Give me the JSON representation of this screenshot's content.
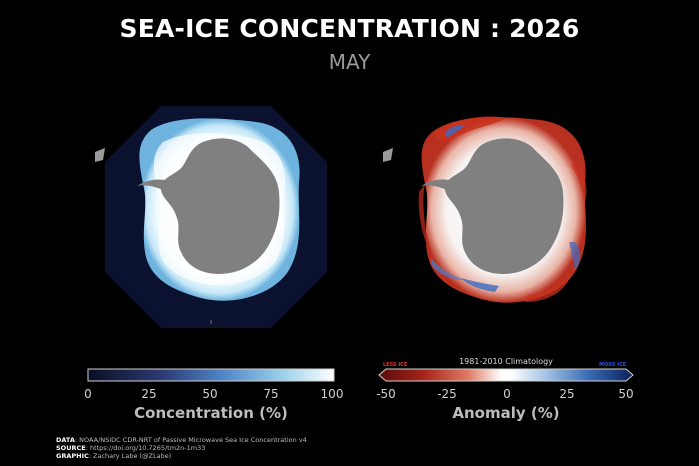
{
  "header": {
    "title": "SEA-ICE CONCENTRATION : 2026",
    "month": "MAY"
  },
  "concentration_colorbar": {
    "ticks": [
      "0",
      "25",
      "50",
      "75",
      "100"
    ],
    "title": "Concentration (%)",
    "colors": [
      "#0a0f24",
      "#3b4f8f",
      "#4f86c6",
      "#9fd3ec",
      "#ffffff"
    ]
  },
  "anomaly_colorbar": {
    "ticks": [
      "-50",
      "-25",
      "0",
      "25",
      "50"
    ],
    "title": "Anomaly (%)",
    "climatology_label": "1981-2010 Climatology",
    "less_label": "LESS ICE",
    "more_label": "MORE ICE",
    "colors": [
      "#5a0a0a",
      "#c0342a",
      "#f4c4b0",
      "#ffffff",
      "#b8cde8",
      "#3b6fb6",
      "#0a1f5a"
    ]
  },
  "credits": {
    "data_label": "DATA",
    "data_text": ": NOAA/NSIDC CDR-NRT of Passive Microwave Sea Ice Concentration v4",
    "source_label": "SOURCE",
    "source_text": ": https://doi.org/10.7265/tm2n-1m33",
    "graphic_label": "GRAPHIC",
    "graphic_text": ": Zachary Labe (@ZLabe)"
  },
  "map_colors": {
    "land": "#808080",
    "ocean_domain": "#0b1230",
    "ice_high": "#eef8ff",
    "ice_edge": "#a9d9f0",
    "anomaly_neg": "#c8321f",
    "anomaly_pos": "#3a6cc0"
  }
}
